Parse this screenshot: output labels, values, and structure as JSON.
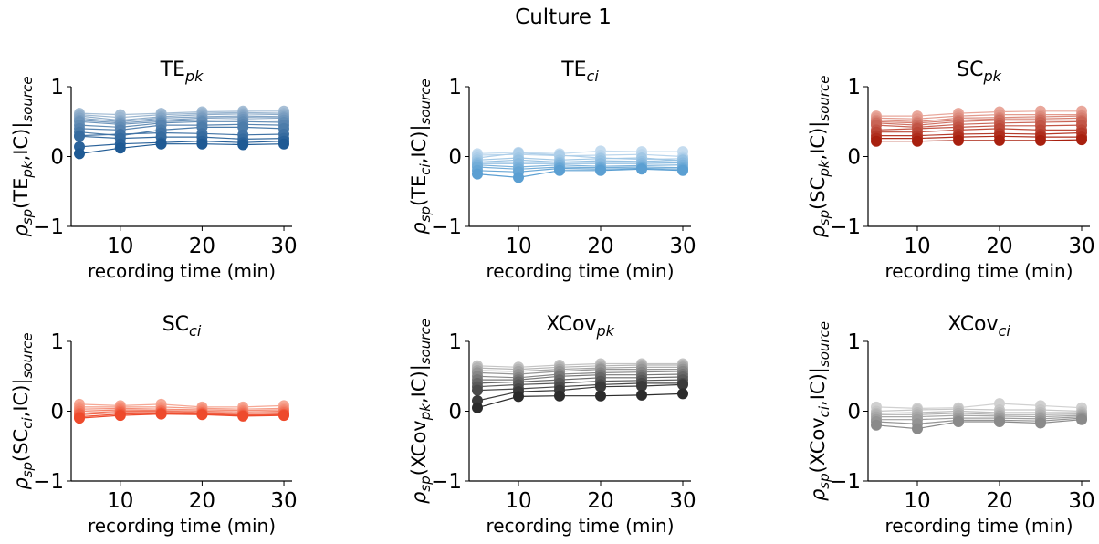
{
  "figure": {
    "title": "Culture 1"
  },
  "common": {
    "xlabel": "recording time (min)",
    "x": [
      5,
      10,
      15,
      20,
      25,
      30
    ],
    "xticks": [
      10,
      20,
      30
    ],
    "ylim": [
      -1,
      1
    ],
    "yticks": [
      -1,
      0,
      1
    ],
    "xlim": [
      4,
      31
    ]
  },
  "chart_data": [
    {
      "type": "line",
      "title": "TEpk",
      "title_main": "TE",
      "title_sub": "pk",
      "ylabel_parts": [
        "ρ",
        "sp",
        "(TE",
        "pk",
        ",IC)|",
        "source"
      ],
      "color_light": "#a7bfd6",
      "color_dark": "#1f5a94",
      "x": [
        5,
        10,
        15,
        20,
        25,
        30
      ],
      "series": [
        {
          "values": [
            0.62,
            0.6,
            0.62,
            0.64,
            0.65,
            0.65
          ]
        },
        {
          "values": [
            0.6,
            0.56,
            0.6,
            0.62,
            0.63,
            0.62
          ]
        },
        {
          "values": [
            0.58,
            0.52,
            0.57,
            0.6,
            0.61,
            0.6
          ]
        },
        {
          "values": [
            0.55,
            0.5,
            0.55,
            0.57,
            0.58,
            0.57
          ]
        },
        {
          "values": [
            0.52,
            0.48,
            0.52,
            0.55,
            0.56,
            0.55
          ]
        },
        {
          "values": [
            0.5,
            0.46,
            0.5,
            0.52,
            0.53,
            0.52
          ]
        },
        {
          "values": [
            0.45,
            0.42,
            0.48,
            0.5,
            0.5,
            0.49
          ]
        },
        {
          "values": [
            0.4,
            0.38,
            0.45,
            0.45,
            0.46,
            0.45
          ]
        },
        {
          "values": [
            0.35,
            0.3,
            0.38,
            0.42,
            0.42,
            0.4
          ]
        },
        {
          "values": [
            0.3,
            0.32,
            0.34,
            0.33,
            0.31,
            0.32
          ]
        },
        {
          "values": [
            0.29,
            0.26,
            0.28,
            0.28,
            0.25,
            0.26
          ]
        },
        {
          "values": [
            0.14,
            0.18,
            0.2,
            0.22,
            0.2,
            0.22
          ]
        },
        {
          "values": [
            0.04,
            0.12,
            0.18,
            0.18,
            0.17,
            0.18
          ]
        }
      ]
    },
    {
      "type": "line",
      "title": "TEci",
      "title_main": "TE",
      "title_sub": "ci",
      "ylabel_parts": [
        "ρ",
        "sp",
        "(TE",
        "ci",
        ",IC)|",
        "source"
      ],
      "color_light": "#c5dcef",
      "color_dark": "#5b9fd2",
      "x": [
        5,
        10,
        15,
        20,
        25,
        30
      ],
      "series": [
        {
          "values": [
            0.04,
            0.06,
            0.04,
            0.08,
            0.07,
            0.07
          ]
        },
        {
          "values": [
            0.02,
            0.03,
            0.01,
            0.02,
            0.03,
            0.0
          ]
        },
        {
          "values": [
            -0.02,
            0.05,
            0.02,
            -0.02,
            -0.04,
            -0.03
          ]
        },
        {
          "values": [
            -0.05,
            -0.02,
            -0.05,
            -0.03,
            -0.02,
            -0.06
          ]
        },
        {
          "values": [
            -0.08,
            -0.05,
            -0.08,
            -0.06,
            -0.07,
            -0.05
          ]
        },
        {
          "values": [
            -0.1,
            -0.1,
            -0.1,
            -0.1,
            -0.1,
            -0.09
          ]
        },
        {
          "values": [
            -0.12,
            -0.15,
            -0.12,
            -0.14,
            -0.13,
            -0.12
          ]
        },
        {
          "values": [
            -0.15,
            -0.18,
            -0.15,
            -0.16,
            -0.15,
            -0.16
          ]
        },
        {
          "values": [
            -0.2,
            -0.22,
            -0.17,
            -0.18,
            -0.17,
            -0.18
          ]
        },
        {
          "values": [
            -0.25,
            -0.3,
            -0.2,
            -0.2,
            -0.18,
            -0.2
          ]
        }
      ]
    },
    {
      "type": "line",
      "title": "SCpk",
      "title_main": "SC",
      "title_sub": "pk",
      "ylabel_parts": [
        "ρ",
        "sp",
        "(SC",
        "pk",
        ",IC)|",
        "source"
      ],
      "color_light": "#e9a79b",
      "color_dark": "#a8200f",
      "x": [
        5,
        10,
        15,
        20,
        25,
        30
      ],
      "series": [
        {
          "values": [
            0.58,
            0.58,
            0.62,
            0.64,
            0.65,
            0.65
          ]
        },
        {
          "values": [
            0.55,
            0.54,
            0.58,
            0.6,
            0.6,
            0.6
          ]
        },
        {
          "values": [
            0.52,
            0.5,
            0.55,
            0.56,
            0.57,
            0.58
          ]
        },
        {
          "values": [
            0.5,
            0.48,
            0.52,
            0.54,
            0.54,
            0.55
          ]
        },
        {
          "values": [
            0.48,
            0.45,
            0.5,
            0.52,
            0.52,
            0.52
          ]
        },
        {
          "values": [
            0.45,
            0.42,
            0.46,
            0.48,
            0.49,
            0.5
          ]
        },
        {
          "values": [
            0.38,
            0.4,
            0.42,
            0.44,
            0.44,
            0.45
          ]
        },
        {
          "values": [
            0.35,
            0.35,
            0.38,
            0.4,
            0.38,
            0.38
          ]
        },
        {
          "values": [
            0.3,
            0.3,
            0.32,
            0.33,
            0.32,
            0.34
          ]
        },
        {
          "values": [
            0.26,
            0.26,
            0.28,
            0.29,
            0.28,
            0.28
          ]
        },
        {
          "values": [
            0.22,
            0.22,
            0.23,
            0.23,
            0.23,
            0.24
          ]
        }
      ]
    },
    {
      "type": "line",
      "title": "SCci",
      "title_main": "SC",
      "title_sub": "ci",
      "ylabel_parts": [
        "ρ",
        "sp",
        "(SC",
        "ci",
        ",IC)|",
        "source"
      ],
      "color_light": "#f6a895",
      "color_dark": "#ee4a2c",
      "x": [
        5,
        10,
        15,
        20,
        25,
        30
      ],
      "series": [
        {
          "values": [
            0.1,
            0.08,
            0.1,
            0.06,
            0.06,
            0.08
          ]
        },
        {
          "values": [
            0.06,
            0.06,
            0.06,
            0.04,
            0.03,
            0.04
          ]
        },
        {
          "values": [
            0.03,
            0.04,
            0.03,
            0.02,
            0.01,
            0.02
          ]
        },
        {
          "values": [
            0.0,
            0.02,
            0.01,
            0.0,
            -0.01,
            0.0
          ]
        },
        {
          "values": [
            -0.03,
            0.0,
            0.0,
            -0.02,
            -0.03,
            -0.02
          ]
        },
        {
          "values": [
            -0.05,
            -0.02,
            -0.02,
            -0.03,
            -0.05,
            -0.04
          ]
        },
        {
          "values": [
            -0.08,
            -0.04,
            -0.03,
            -0.04,
            -0.06,
            -0.05
          ]
        },
        {
          "values": [
            -0.1,
            -0.06,
            -0.04,
            -0.05,
            -0.07,
            -0.06
          ]
        }
      ]
    },
    {
      "type": "line",
      "title": "XCovpk",
      "title_main": "XCov",
      "title_sub": "pk",
      "ylabel_parts": [
        "ρ",
        "sp",
        "(XCov",
        "pk",
        ",IC)|",
        "source"
      ],
      "color_light": "#c4c4c4",
      "color_dark": "#2b2b2b",
      "x": [
        5,
        10,
        15,
        20,
        25,
        30
      ],
      "series": [
        {
          "values": [
            0.65,
            0.63,
            0.66,
            0.68,
            0.68,
            0.68
          ]
        },
        {
          "values": [
            0.62,
            0.6,
            0.63,
            0.65,
            0.66,
            0.66
          ]
        },
        {
          "values": [
            0.58,
            0.57,
            0.6,
            0.62,
            0.63,
            0.63
          ]
        },
        {
          "values": [
            0.55,
            0.53,
            0.57,
            0.6,
            0.6,
            0.6
          ]
        },
        {
          "values": [
            0.5,
            0.48,
            0.53,
            0.55,
            0.56,
            0.57
          ]
        },
        {
          "values": [
            0.45,
            0.45,
            0.5,
            0.52,
            0.52,
            0.53
          ]
        },
        {
          "values": [
            0.4,
            0.42,
            0.45,
            0.48,
            0.48,
            0.49
          ]
        },
        {
          "values": [
            0.35,
            0.38,
            0.4,
            0.43,
            0.44,
            0.45
          ]
        },
        {
          "values": [
            0.3,
            0.32,
            0.35,
            0.38,
            0.4,
            0.4
          ]
        },
        {
          "values": [
            0.15,
            0.28,
            0.3,
            0.35,
            0.36,
            0.38
          ]
        },
        {
          "values": [
            0.05,
            0.21,
            0.22,
            0.22,
            0.23,
            0.25
          ]
        }
      ]
    },
    {
      "type": "line",
      "title": "XCovci",
      "title_main": "XCov",
      "title_sub": "ci",
      "ylabel_parts": [
        "ρ",
        "sp",
        "(XCov",
        "ci",
        ",IC)|",
        "source"
      ],
      "color_light": "#d0d0d0",
      "color_dark": "#8a8a8a",
      "x": [
        5,
        10,
        15,
        20,
        25,
        30
      ],
      "series": [
        {
          "values": [
            0.06,
            0.04,
            0.05,
            0.11,
            0.08,
            0.05
          ]
        },
        {
          "values": [
            0.0,
            0.02,
            0.03,
            0.02,
            0.02,
            0.0
          ]
        },
        {
          "values": [
            -0.03,
            -0.02,
            0.0,
            -0.02,
            -0.02,
            -0.02
          ]
        },
        {
          "values": [
            -0.05,
            -0.05,
            -0.03,
            -0.05,
            -0.05,
            -0.04
          ]
        },
        {
          "values": [
            -0.08,
            -0.08,
            -0.06,
            -0.07,
            -0.08,
            -0.06
          ]
        },
        {
          "values": [
            -0.12,
            -0.12,
            -0.1,
            -0.1,
            -0.11,
            -0.08
          ]
        },
        {
          "values": [
            -0.15,
            -0.18,
            -0.13,
            -0.13,
            -0.14,
            -0.1
          ]
        },
        {
          "values": [
            -0.2,
            -0.25,
            -0.15,
            -0.15,
            -0.17,
            -0.12
          ]
        }
      ]
    }
  ]
}
